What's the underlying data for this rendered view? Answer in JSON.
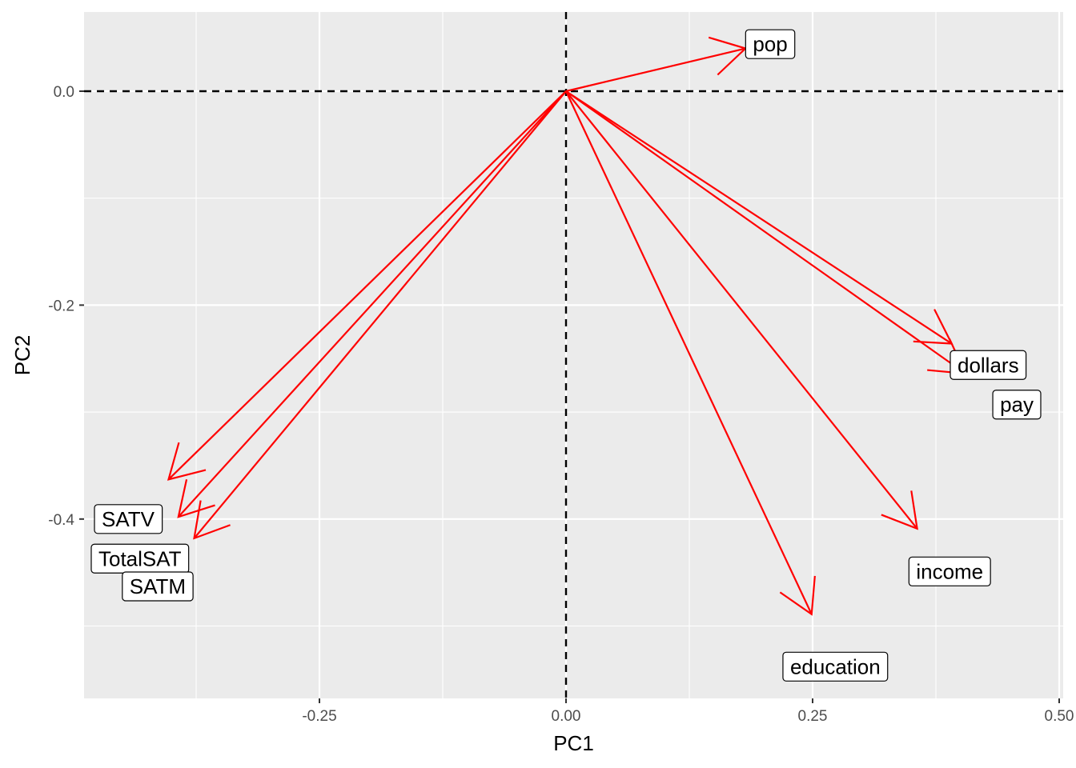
{
  "chart_data": {
    "type": "biplot-loadings",
    "xlabel": "PC1",
    "ylabel": "PC2",
    "xlim": [
      -0.485,
      0.5
    ],
    "ylim": [
      -0.565,
      0.072
    ],
    "x_ticks": [
      {
        "value": -0.25,
        "label": "-0.25"
      },
      {
        "value": 0.0,
        "label": "0.00"
      },
      {
        "value": 0.25,
        "label": "0.25"
      },
      {
        "value": 0.5,
        "label": "0.50"
      }
    ],
    "y_ticks": [
      {
        "value": 0.0,
        "label": "0.0"
      },
      {
        "value": -0.2,
        "label": "-0.2"
      },
      {
        "value": -0.4,
        "label": "-0.4"
      }
    ],
    "reference_lines": {
      "x": 0,
      "y": 0,
      "style": "dashed"
    },
    "arrow_color": "#ff0000",
    "panel_background": "#ebebeb",
    "grid": true,
    "loadings": [
      {
        "variable": "pop",
        "x": 0.182,
        "y": 0.04,
        "label_x": 0.207,
        "label_y": 0.044
      },
      {
        "variable": "dollars",
        "x": 0.391,
        "y": -0.236,
        "label_x": 0.428,
        "label_y": -0.256
      },
      {
        "variable": "pay",
        "x": 0.405,
        "y": -0.264,
        "label_x": 0.457,
        "label_y": -0.293
      },
      {
        "variable": "income",
        "x": 0.356,
        "y": -0.409,
        "label_x": 0.389,
        "label_y": -0.449
      },
      {
        "variable": "education",
        "x": 0.249,
        "y": -0.489,
        "label_x": 0.273,
        "label_y": -0.538
      },
      {
        "variable": "SATV",
        "x": -0.403,
        "y": -0.363,
        "label_x": -0.444,
        "label_y": -0.4
      },
      {
        "variable": "TotalSAT",
        "x": -0.393,
        "y": -0.398,
        "label_x": -0.432,
        "label_y": -0.437
      },
      {
        "variable": "SATM",
        "x": -0.377,
        "y": -0.418,
        "label_x": -0.414,
        "label_y": -0.463
      }
    ]
  }
}
